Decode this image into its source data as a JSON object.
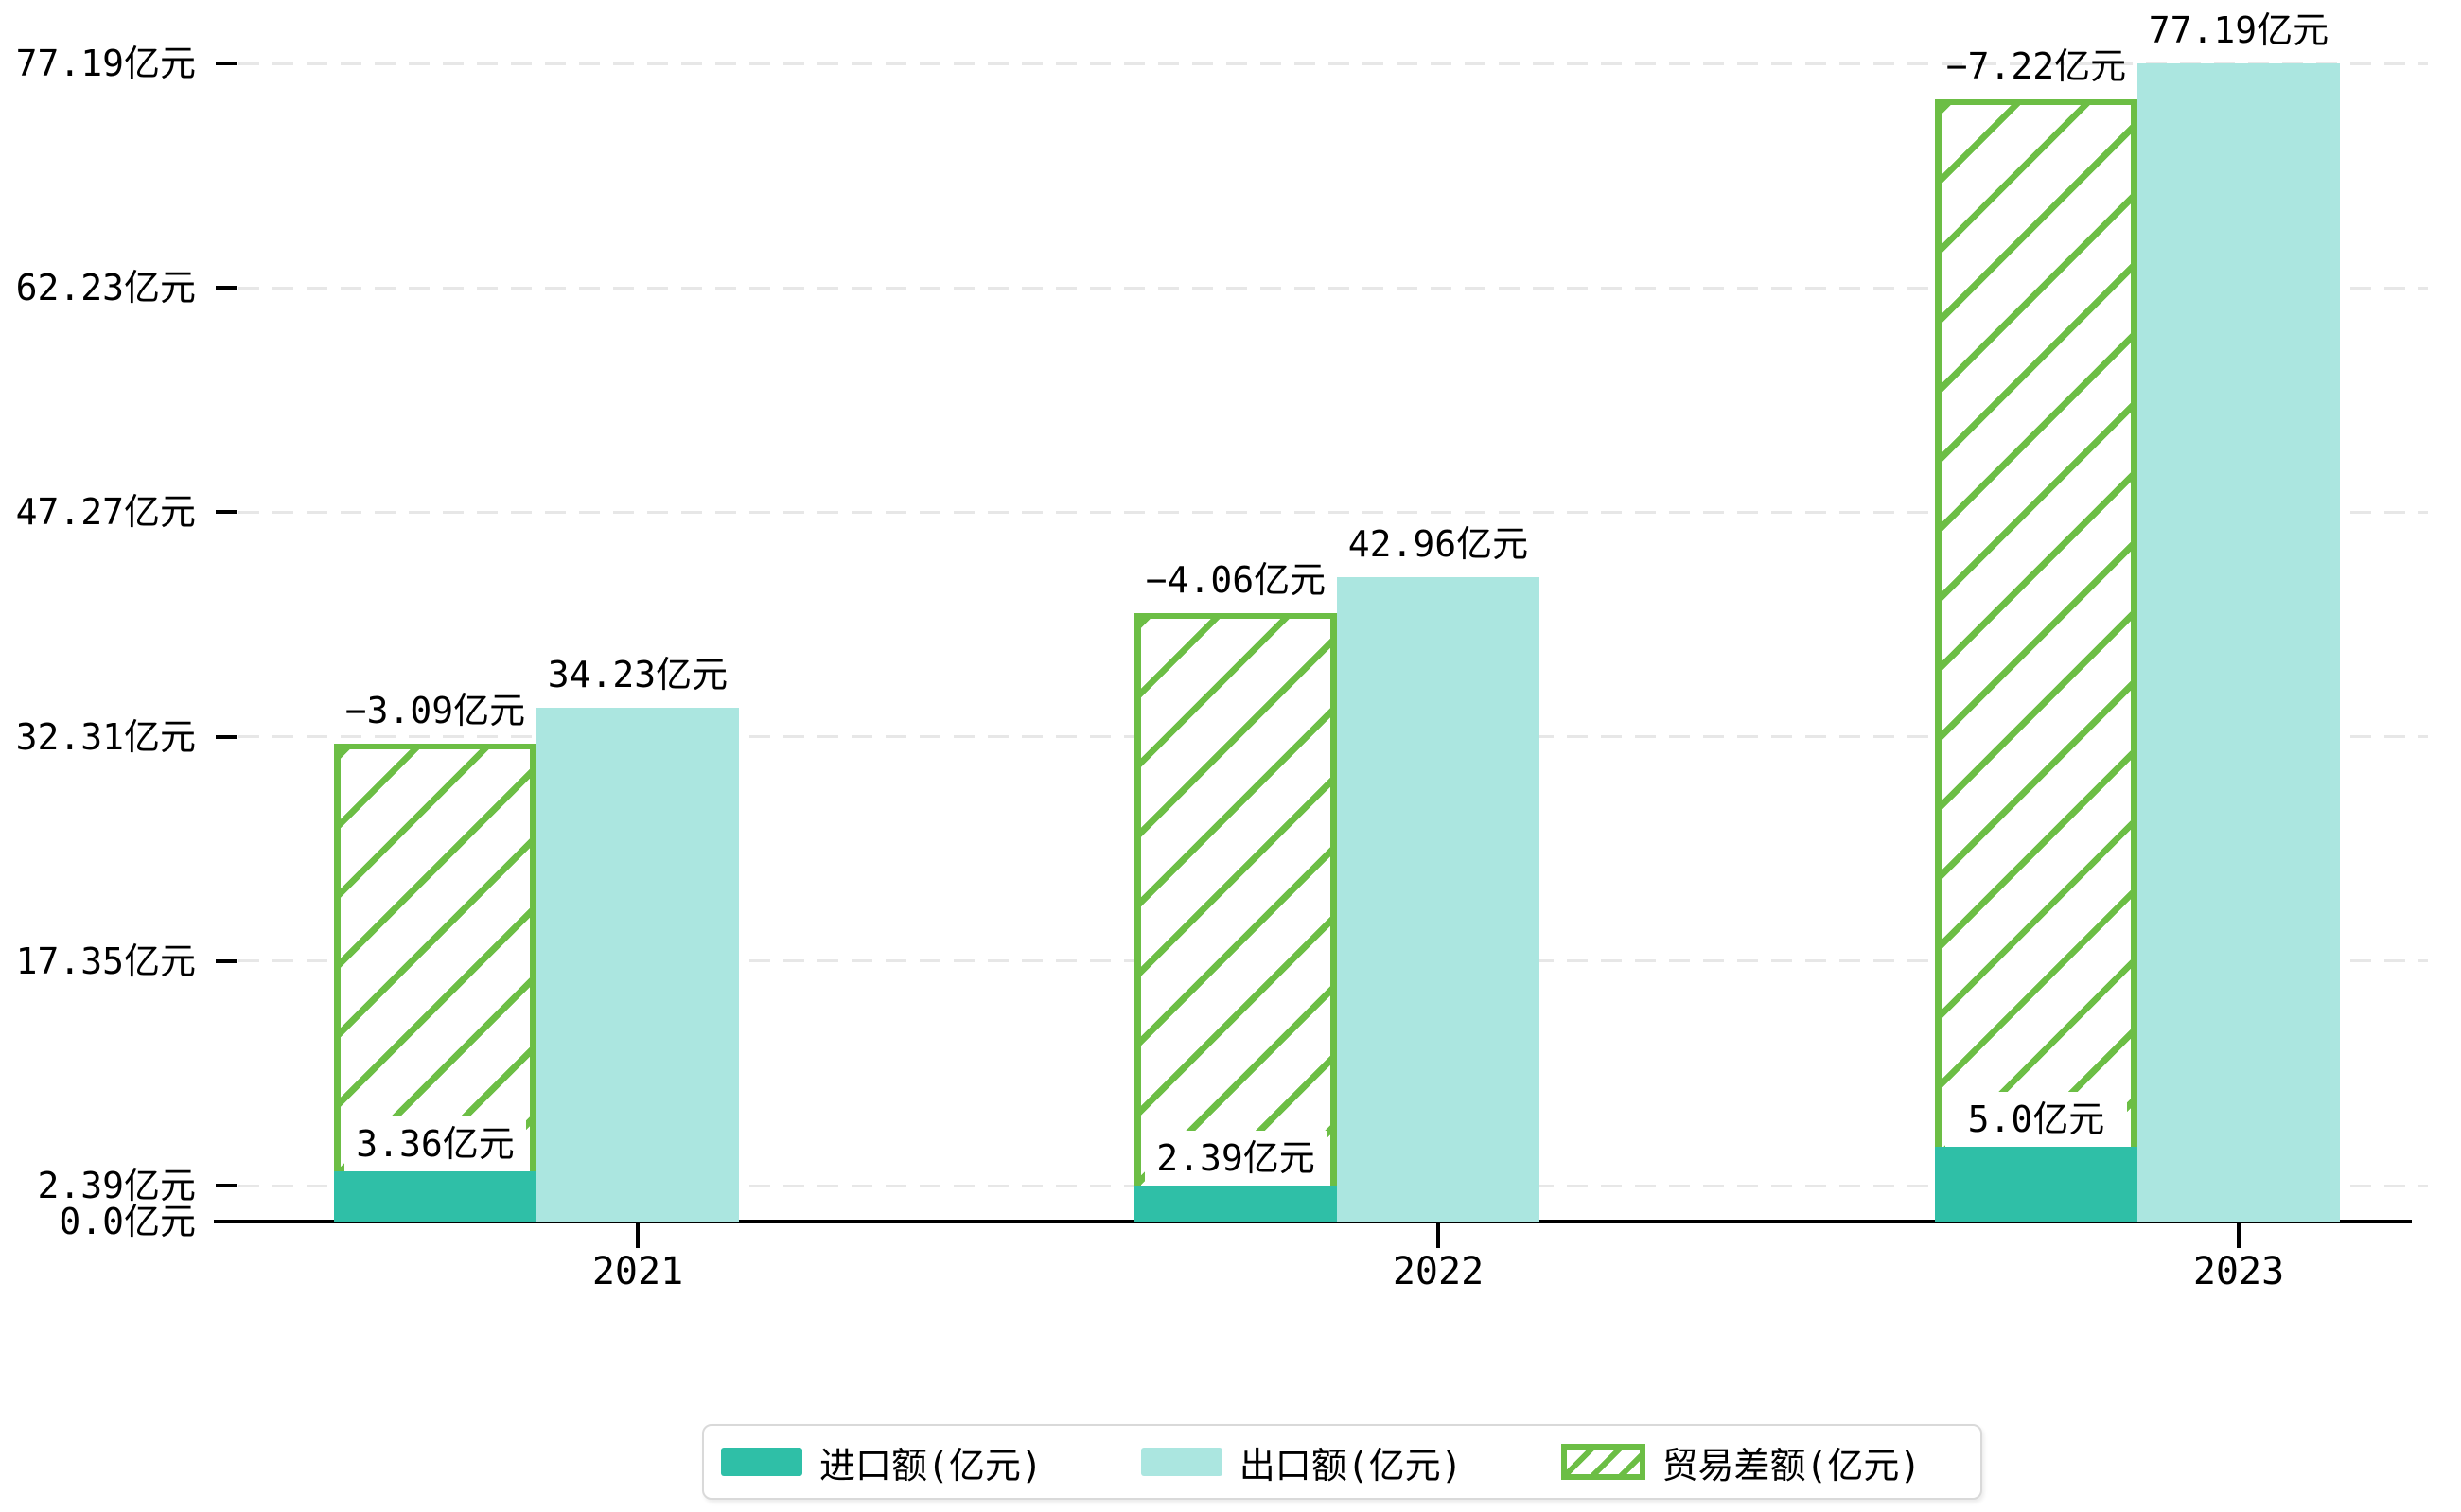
{
  "chart_data": {
    "type": "bar",
    "title": "",
    "categories": [
      "2021",
      "2022",
      "2023"
    ],
    "series": [
      {
        "name": "进口额(亿元)",
        "values": [
          3.36,
          2.39,
          5.0
        ],
        "labels": [
          "3.36亿元",
          "2.39亿元",
          "5.0亿元"
        ],
        "color": "#2fbfa7",
        "style": "solid"
      },
      {
        "name": "出口额(亿元)",
        "values": [
          34.23,
          42.96,
          77.19
        ],
        "labels": [
          "34.23亿元",
          "42.96亿元",
          "77.19亿元"
        ],
        "color": "#abe6e0",
        "style": "solid"
      },
      {
        "name": "贸易差额(亿元)",
        "values": [
          -3.09,
          -4.06,
          -7.22
        ],
        "labels": [
          "−3.09亿元",
          "−4.06亿元",
          "−7.22亿元"
        ],
        "color": "#6cbe45",
        "style": "hatched",
        "bar_spans": [
          [
            3.36,
            31.84
          ],
          [
            2.39,
            40.57
          ],
          [
            5.0,
            74.8
          ]
        ]
      }
    ],
    "y_ticks": [
      {
        "value": 0,
        "label": "0.0亿元"
      },
      {
        "value": 2.39,
        "label": "2.39亿元"
      },
      {
        "value": 17.35,
        "label": "17.35亿元"
      },
      {
        "value": 32.31,
        "label": "32.31亿元"
      },
      {
        "value": 47.27,
        "label": "47.27亿元"
      },
      {
        "value": 62.23,
        "label": "62.23亿元"
      },
      {
        "value": 77.19,
        "label": "77.19亿元"
      }
    ],
    "ylim": [
      0,
      77.19
    ],
    "xlabel": "",
    "ylabel": "",
    "grid": "dashed-horizontal",
    "legend_position": "bottom-center"
  },
  "colors": {
    "import_bar": "#2fbfa7",
    "export_bar": "#abe6e0",
    "balance_hatch": "#6cbe45",
    "gridline": "#e7e7e7",
    "axis": "#000000",
    "legend_border": "#d9d9d9",
    "background": "#ffffff"
  }
}
